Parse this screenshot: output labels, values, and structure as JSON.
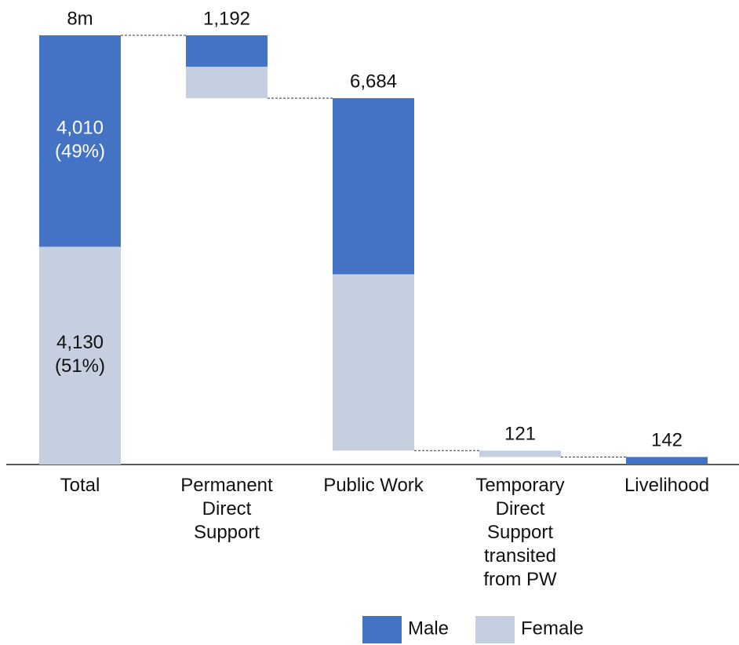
{
  "chart_data": {
    "type": "waterfall",
    "categories": [
      "Total",
      "Permanent Direct Support",
      "Public Work",
      "Temporary Direct Support transited from PW",
      "Livelihood"
    ],
    "total_labels": [
      "8m",
      "1,192",
      "6,684",
      "121",
      "142"
    ],
    "series": [
      {
        "name": "Male",
        "color": "#4472c4",
        "values": [
          4010,
          595,
          3342,
          0,
          142
        ],
        "value_labels": [
          "4,010 (49%)",
          null,
          null,
          null,
          null
        ]
      },
      {
        "name": "Female",
        "color": "#c5cfe0",
        "values": [
          4130,
          597,
          3342,
          121,
          0
        ],
        "value_labels": [
          "4,130 (51%)",
          null,
          null,
          null,
          null
        ]
      }
    ],
    "connectors": true
  }
}
